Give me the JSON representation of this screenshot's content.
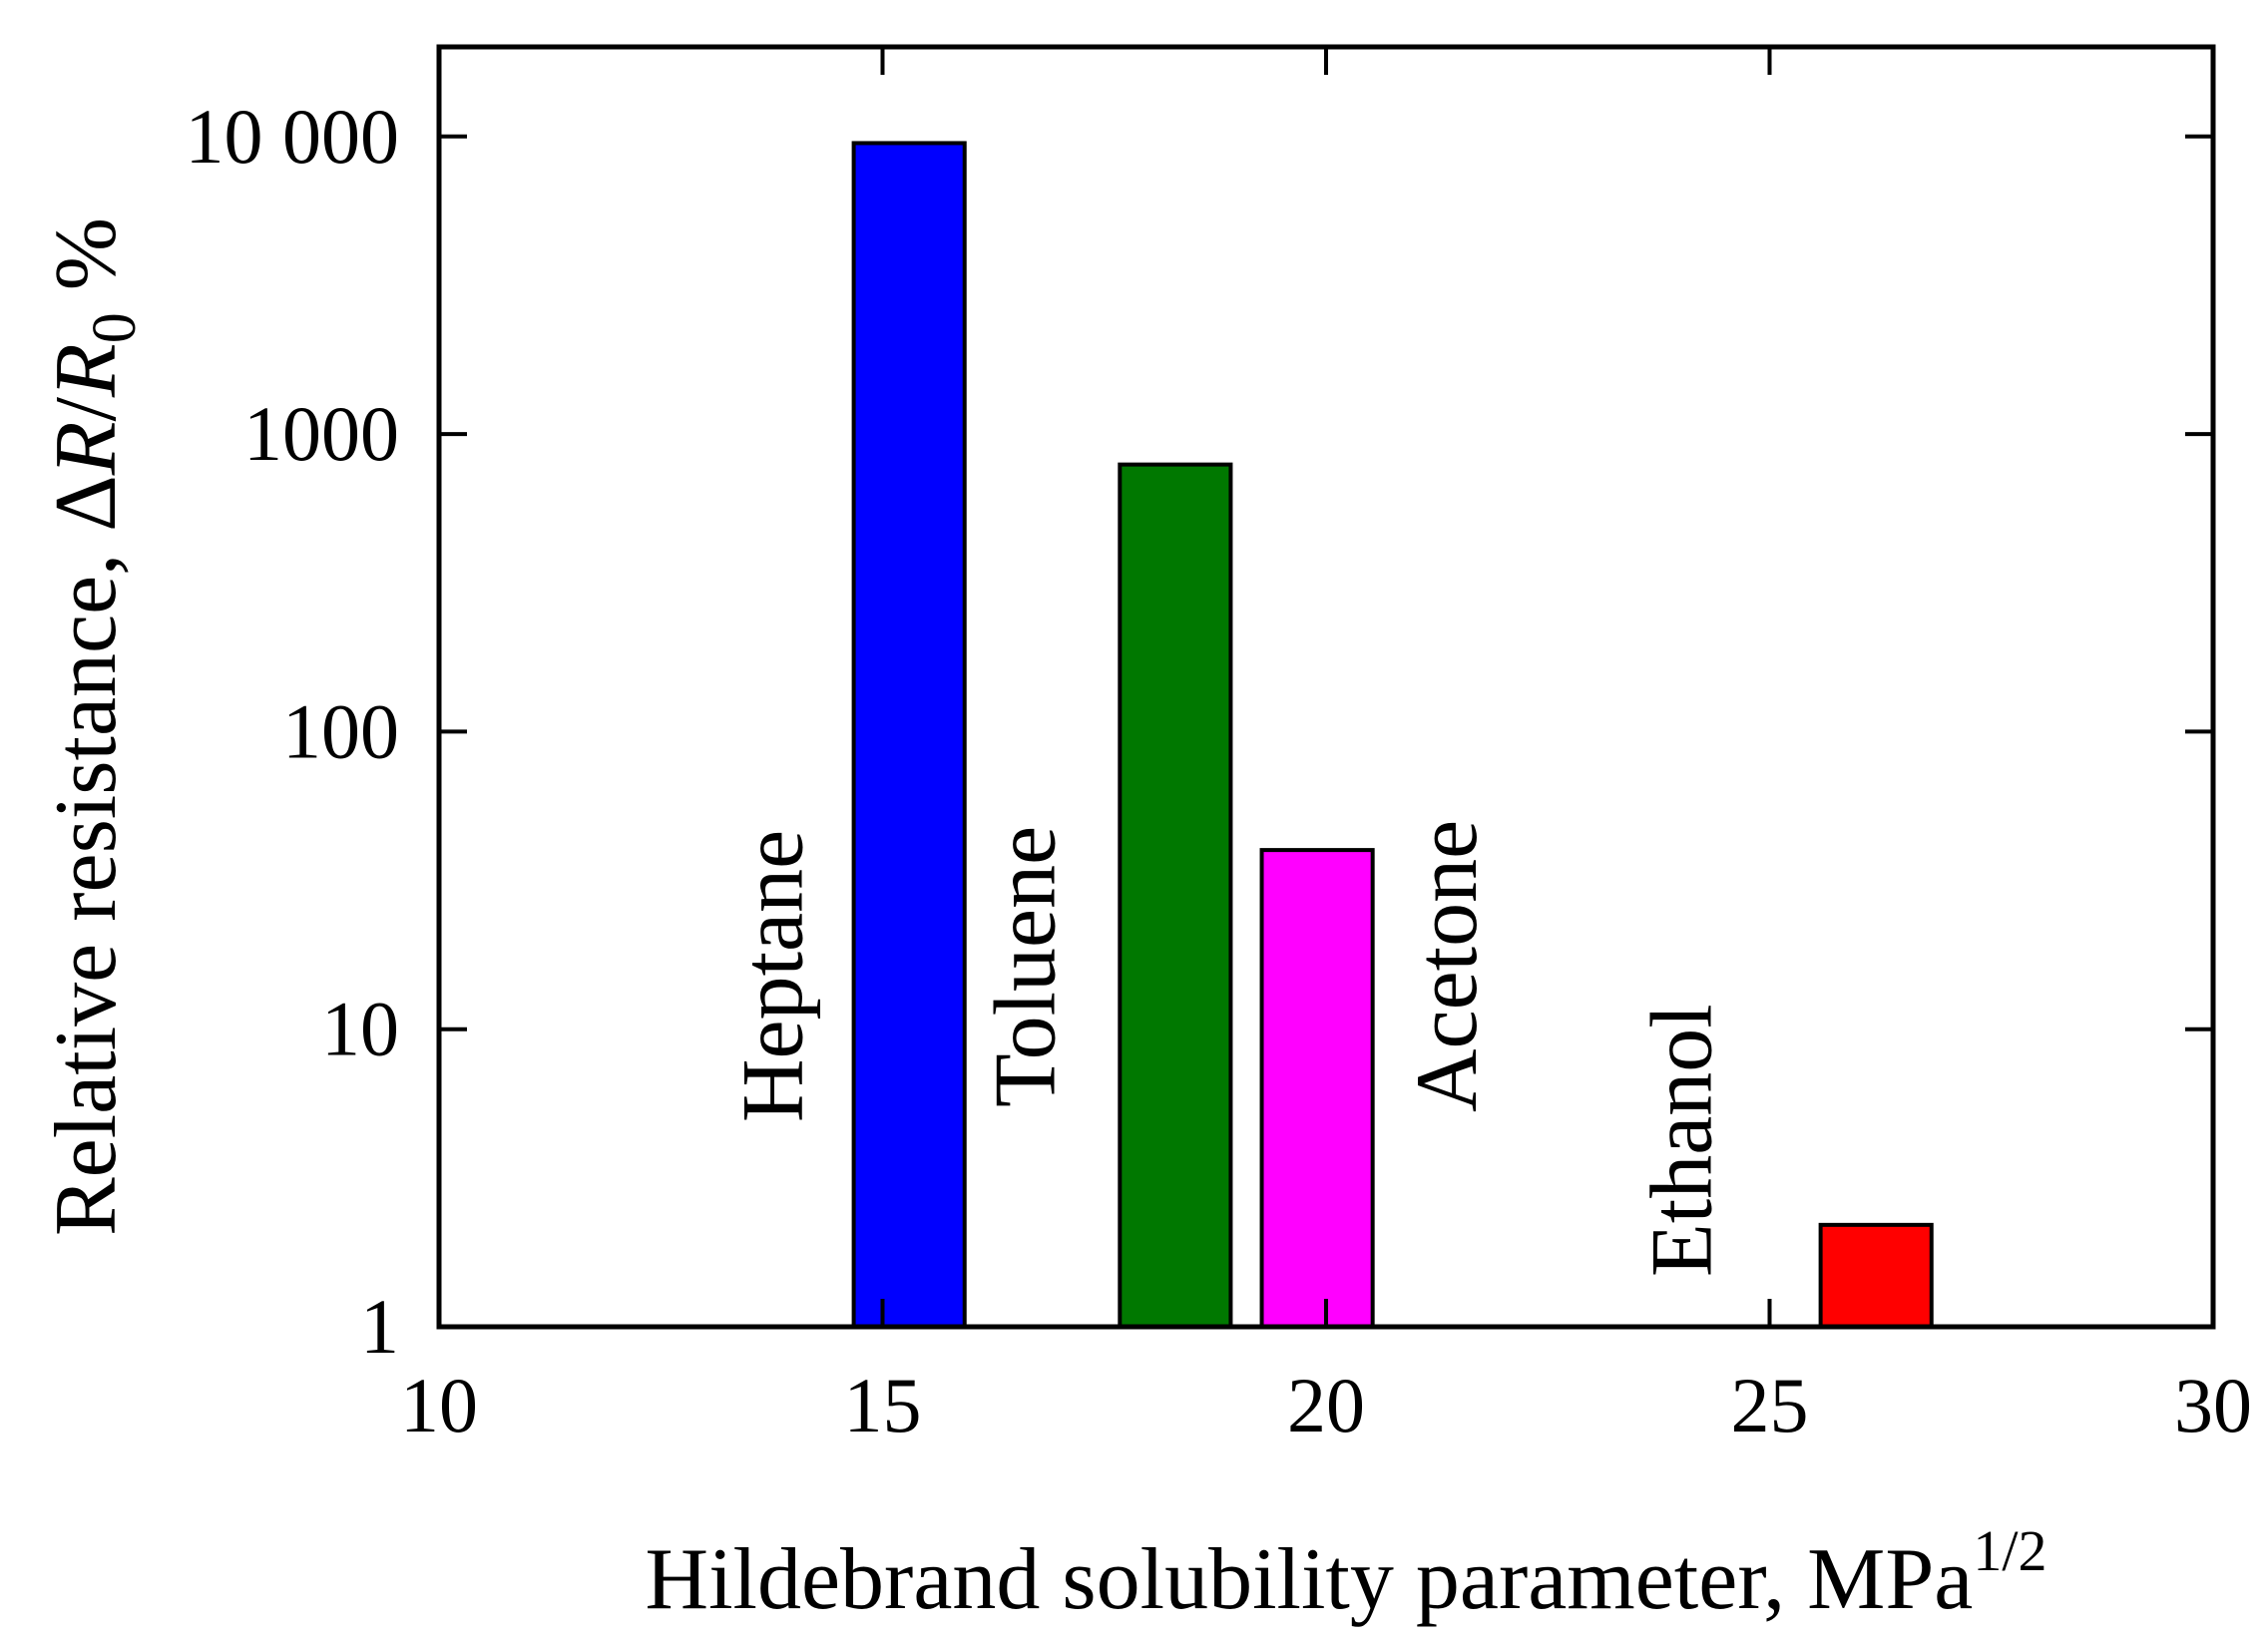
{
  "chart_data": {
    "type": "bar",
    "x_scale": "linear",
    "y_scale": "log",
    "xlim": [
      10,
      30
    ],
    "ylim": [
      1,
      20000
    ],
    "x_ticks": [
      {
        "value": 10,
        "label": "10"
      },
      {
        "value": 15,
        "label": "15"
      },
      {
        "value": 20,
        "label": "20"
      },
      {
        "value": 25,
        "label": "25"
      },
      {
        "value": 30,
        "label": "30"
      }
    ],
    "y_ticks": [
      {
        "value": 1,
        "label": "1"
      },
      {
        "value": 10,
        "label": "10"
      },
      {
        "value": 100,
        "label": "100"
      },
      {
        "value": 1000,
        "label": "1000"
      },
      {
        "value": 10000,
        "label": "10 000"
      }
    ],
    "xlabel": {
      "text": "Hildebrand solubility parameter, MPa",
      "superscript": "1/2"
    },
    "ylabel": {
      "prefix": "Relative resistance, Δ",
      "var1": "R",
      "slash": "/",
      "var2": "R",
      "subscript": "0",
      "suffix": " %"
    },
    "grid": false,
    "legend": "none",
    "bars": [
      {
        "label": "Heptane",
        "x": 15.3,
        "width": 1.25,
        "value": 9500,
        "color": "#0000ff"
      },
      {
        "label": "Toluene",
        "x": 18.3,
        "width": 1.25,
        "value": 790,
        "color": "#007800"
      },
      {
        "label": "Acetone",
        "x": 19.9,
        "width": 1.25,
        "value": 40,
        "color": "#ff00ff"
      },
      {
        "label": "Ethanol",
        "x": 26.2,
        "width": 1.25,
        "value": 2.2,
        "color": "#ff0000"
      }
    ]
  }
}
